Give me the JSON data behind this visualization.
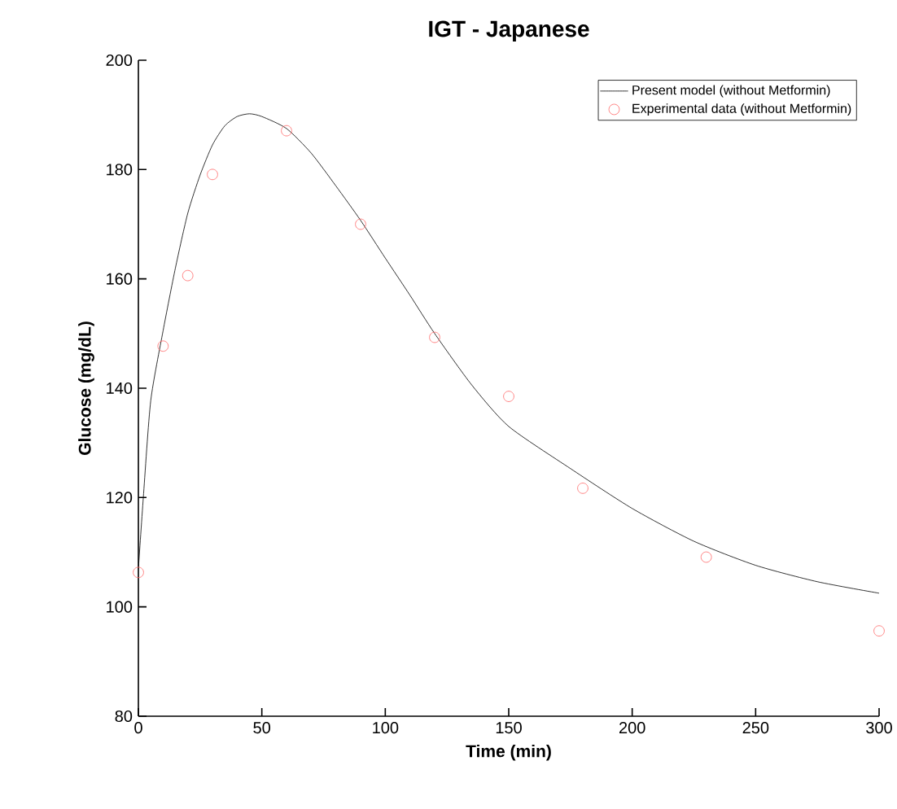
{
  "chart_data": {
    "type": "line",
    "title": "IGT - Japanese",
    "xlabel": "Time (min)",
    "ylabel": "Glucose (mg/dL)",
    "xlim": [
      0,
      300
    ],
    "xticks": [
      0,
      50,
      100,
      150,
      200,
      250,
      300
    ],
    "ylim": [
      80,
      200
    ],
    "yticks": [
      80,
      100,
      120,
      140,
      160,
      180,
      200
    ],
    "legend": "top right",
    "grid": false,
    "series": [
      {
        "name": "Present model (without Metformin)",
        "color": "#000000",
        "marker": "none",
        "line_style": "solid",
        "x": [
          0,
          2,
          5,
          10,
          15,
          20,
          25,
          30,
          35,
          40,
          45,
          50,
          60,
          70,
          80,
          90,
          100,
          110,
          120,
          135,
          150,
          175,
          200,
          225,
          250,
          275,
          300
        ],
        "values": [
          107,
          120,
          137.7,
          150.5,
          162,
          172,
          179,
          184.5,
          188,
          189.7,
          190.2,
          189.7,
          187.5,
          183,
          177,
          170.7,
          163.8,
          157,
          150,
          140.6,
          133,
          125.3,
          118,
          112,
          107.6,
          104.6,
          102.5
        ]
      },
      {
        "name": "Experimental data (without Metformin)",
        "type": "scatter",
        "color": "#ff6666",
        "marker": "circle",
        "x": [
          0,
          10,
          20,
          30,
          60,
          90,
          120,
          150,
          180,
          230,
          300
        ],
        "values": [
          106.3,
          147.7,
          160.6,
          179.1,
          187.1,
          170.0,
          149.3,
          138.5,
          121.7,
          109.1,
          95.6
        ]
      }
    ]
  }
}
